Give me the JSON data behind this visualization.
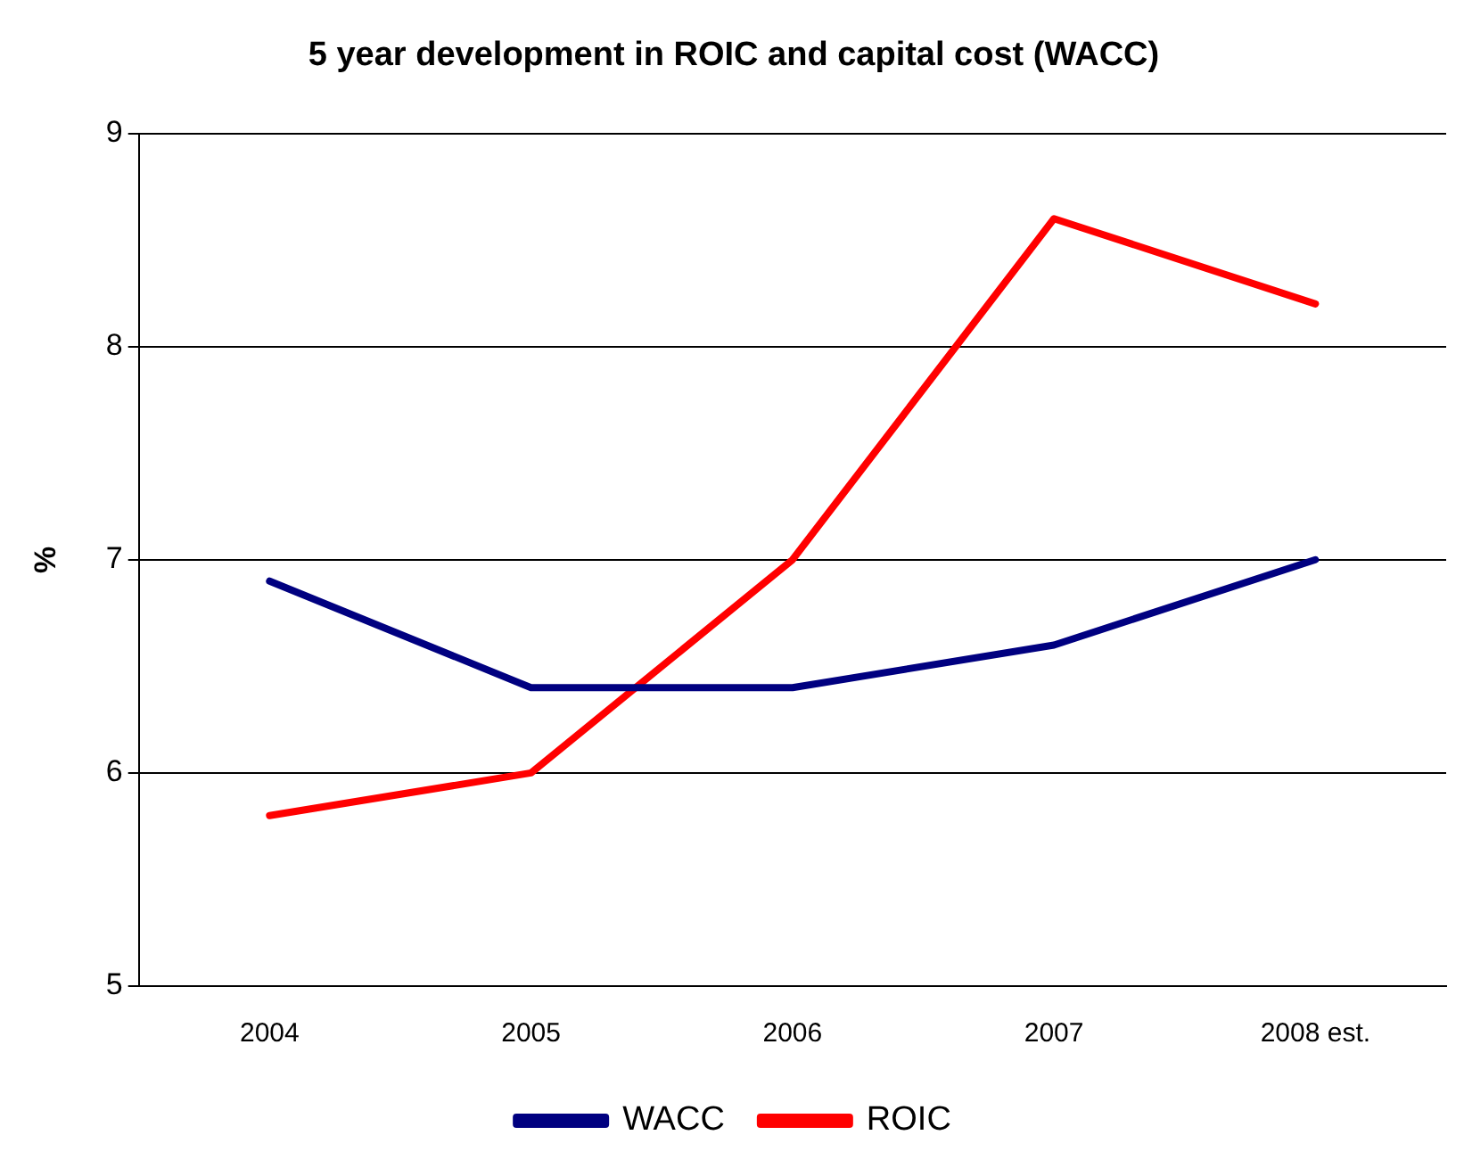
{
  "chart_data": {
    "type": "line",
    "title": "5 year development in ROIC and capital cost (WACC)",
    "ylabel": "%",
    "categories": [
      "2004",
      "2005",
      "2006",
      "2007",
      "2008 est."
    ],
    "series": [
      {
        "name": "WACC",
        "color": "#000080",
        "values": [
          6.9,
          6.4,
          6.4,
          6.6,
          7.0
        ]
      },
      {
        "name": "ROIC",
        "color": "#ff0000",
        "values": [
          5.8,
          6.0,
          7.0,
          8.6,
          8.2
        ]
      }
    ],
    "ylim": [
      5,
      9
    ],
    "yticks": [
      5,
      6,
      7,
      8,
      9
    ],
    "grid": "y",
    "legend": "bottom",
    "marker": "none",
    "line_style": "solid"
  }
}
